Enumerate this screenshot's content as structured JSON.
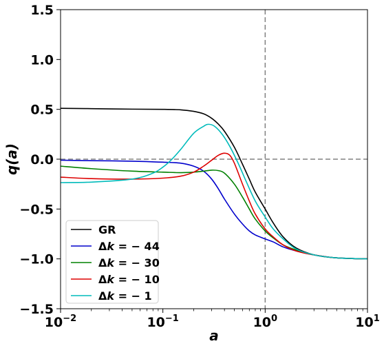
{
  "chart_data": {
    "type": "line",
    "xlabel": "a",
    "ylabel": "q(a)",
    "xscale": "log",
    "xlim": [
      0.01,
      10
    ],
    "ylim": [
      -1.5,
      1.5
    ],
    "x_ticks": [
      {
        "value": 0.01,
        "base": "10",
        "exp": "−2"
      },
      {
        "value": 0.1,
        "base": "10",
        "exp": "−1"
      },
      {
        "value": 1,
        "base": "10",
        "exp": "0"
      },
      {
        "value": 10,
        "base": "10",
        "exp": "1"
      }
    ],
    "y_ticks": [
      {
        "value": -1.5,
        "label": "−1.5"
      },
      {
        "value": -1.0,
        "label": "−1.0"
      },
      {
        "value": -0.5,
        "label": "−0.5"
      },
      {
        "value": 0.0,
        "label": "0.0"
      },
      {
        "value": 0.5,
        "label": "0.5"
      },
      {
        "value": 1.0,
        "label": "1.0"
      },
      {
        "value": 1.5,
        "label": "1.5"
      }
    ],
    "grid": false,
    "legend_position": "bottom-left",
    "reference_lines": [
      {
        "orientation": "horizontal",
        "value": 0,
        "style": "dashed",
        "color": "#808080"
      },
      {
        "orientation": "vertical",
        "value": 1,
        "style": "dashed",
        "color": "#808080"
      }
    ],
    "series": [
      {
        "name": "GR",
        "legend_prefix": "",
        "legend_value": "",
        "color": "#000000",
        "points": [
          [
            0.01,
            0.51
          ],
          [
            0.02,
            0.507
          ],
          [
            0.05,
            0.502
          ],
          [
            0.1,
            0.5
          ],
          [
            0.15,
            0.495
          ],
          [
            0.2,
            0.48
          ],
          [
            0.25,
            0.455
          ],
          [
            0.3,
            0.41
          ],
          [
            0.35,
            0.35
          ],
          [
            0.4,
            0.28
          ],
          [
            0.5,
            0.12
          ],
          [
            0.6,
            -0.05
          ],
          [
            0.7,
            -0.2
          ],
          [
            0.8,
            -0.33
          ],
          [
            1.0,
            -0.5
          ],
          [
            1.2,
            -0.64
          ],
          [
            1.5,
            -0.78
          ],
          [
            2.0,
            -0.89
          ],
          [
            3.0,
            -0.96
          ],
          [
            5.0,
            -0.99
          ],
          [
            10.0,
            -1.0
          ]
        ]
      },
      {
        "name": "Δk = −44",
        "legend_prefix": "Δ",
        "legend_value": " = − 44",
        "color": "#0000cc",
        "points": [
          [
            0.01,
            -0.01
          ],
          [
            0.02,
            -0.015
          ],
          [
            0.05,
            -0.02
          ],
          [
            0.1,
            -0.03
          ],
          [
            0.15,
            -0.04
          ],
          [
            0.2,
            -0.07
          ],
          [
            0.25,
            -0.12
          ],
          [
            0.3,
            -0.2
          ],
          [
            0.35,
            -0.3
          ],
          [
            0.4,
            -0.4
          ],
          [
            0.5,
            -0.55
          ],
          [
            0.6,
            -0.65
          ],
          [
            0.7,
            -0.72
          ],
          [
            0.8,
            -0.76
          ],
          [
            1.0,
            -0.8
          ],
          [
            1.2,
            -0.83
          ],
          [
            1.5,
            -0.88
          ],
          [
            2.0,
            -0.92
          ],
          [
            3.0,
            -0.96
          ],
          [
            5.0,
            -0.99
          ],
          [
            10.0,
            -1.0
          ]
        ]
      },
      {
        "name": "Δk = −30",
        "legend_prefix": "Δ",
        "legend_value": " = − 30",
        "color": "#008000",
        "points": [
          [
            0.01,
            -0.07
          ],
          [
            0.02,
            -0.095
          ],
          [
            0.05,
            -0.12
          ],
          [
            0.1,
            -0.13
          ],
          [
            0.15,
            -0.135
          ],
          [
            0.2,
            -0.13
          ],
          [
            0.25,
            -0.12
          ],
          [
            0.3,
            -0.11
          ],
          [
            0.35,
            -0.115
          ],
          [
            0.4,
            -0.14
          ],
          [
            0.5,
            -0.25
          ],
          [
            0.6,
            -0.38
          ],
          [
            0.7,
            -0.5
          ],
          [
            0.8,
            -0.6
          ],
          [
            1.0,
            -0.72
          ],
          [
            1.2,
            -0.79
          ],
          [
            1.5,
            -0.86
          ],
          [
            2.0,
            -0.91
          ],
          [
            3.0,
            -0.96
          ],
          [
            5.0,
            -0.99
          ],
          [
            10.0,
            -1.0
          ]
        ]
      },
      {
        "name": "Δk = −10",
        "legend_prefix": "Δ",
        "legend_value": " = − 10",
        "color": "#dd0000",
        "points": [
          [
            0.01,
            -0.18
          ],
          [
            0.02,
            -0.195
          ],
          [
            0.05,
            -0.2
          ],
          [
            0.1,
            -0.19
          ],
          [
            0.15,
            -0.17
          ],
          [
            0.2,
            -0.13
          ],
          [
            0.25,
            -0.07
          ],
          [
            0.3,
            -0.01
          ],
          [
            0.35,
            0.04
          ],
          [
            0.4,
            0.06
          ],
          [
            0.45,
            0.04
          ],
          [
            0.5,
            -0.04
          ],
          [
            0.6,
            -0.25
          ],
          [
            0.7,
            -0.42
          ],
          [
            0.8,
            -0.55
          ],
          [
            1.0,
            -0.7
          ],
          [
            1.2,
            -0.78
          ],
          [
            1.5,
            -0.86
          ],
          [
            2.0,
            -0.92
          ],
          [
            3.0,
            -0.96
          ],
          [
            5.0,
            -0.99
          ],
          [
            10.0,
            -1.0
          ]
        ]
      },
      {
        "name": "Δk = −1",
        "legend_prefix": "Δ",
        "legend_value": " = − 1",
        "color": "#00bbbb",
        "points": [
          [
            0.01,
            -0.235
          ],
          [
            0.02,
            -0.23
          ],
          [
            0.05,
            -0.2
          ],
          [
            0.08,
            -0.14
          ],
          [
            0.1,
            -0.08
          ],
          [
            0.12,
            -0.01
          ],
          [
            0.15,
            0.1
          ],
          [
            0.2,
            0.26
          ],
          [
            0.25,
            0.33
          ],
          [
            0.28,
            0.35
          ],
          [
            0.32,
            0.33
          ],
          [
            0.38,
            0.25
          ],
          [
            0.45,
            0.13
          ],
          [
            0.55,
            -0.05
          ],
          [
            0.65,
            -0.22
          ],
          [
            0.8,
            -0.42
          ],
          [
            1.0,
            -0.58
          ],
          [
            1.2,
            -0.7
          ],
          [
            1.5,
            -0.8
          ],
          [
            2.0,
            -0.9
          ],
          [
            3.0,
            -0.96
          ],
          [
            5.0,
            -0.99
          ],
          [
            10.0,
            -1.0
          ]
        ]
      }
    ]
  }
}
